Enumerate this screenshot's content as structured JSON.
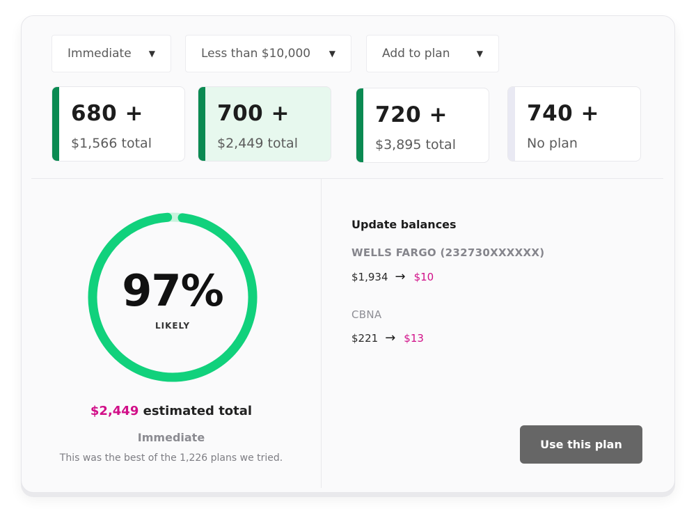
{
  "filters": [
    {
      "label": "Immediate",
      "caret": "▼"
    },
    {
      "label": "Less than $10,000",
      "caret": "▼"
    },
    {
      "label": "Add to plan",
      "caret": "▼"
    }
  ],
  "scores": [
    {
      "score": "680 +",
      "detail": "$1,566 total",
      "accent": "#0b8a52",
      "selected": false
    },
    {
      "score": "700 +",
      "detail": "$2,449 total",
      "accent": "#0b8a52",
      "selected": true
    },
    {
      "score": "720 +",
      "detail": "$3,895 total",
      "accent": "#0b8a52",
      "selected": false
    },
    {
      "score": "740 +",
      "detail": "No plan",
      "accent": "#e9e9f3",
      "selected": false
    }
  ],
  "result": {
    "percent_text": "97%",
    "percent_value": 97,
    "likelihood": "LIKELY",
    "estimated_amount": "$2,449",
    "estimated_label": " estimated total",
    "timing": "Immediate",
    "note": "This was the best of the 1,226 plans we tried."
  },
  "balances": {
    "title": "Update balances",
    "accounts": [
      {
        "name": "WELLS FARGO (232730XXXXXX)",
        "from": "$1,934",
        "to": "$10"
      },
      {
        "name": "CBNA",
        "from": "$221",
        "to": "$13"
      }
    ]
  },
  "cta": {
    "label": "Use this plan"
  },
  "colors": {
    "ring": "#11d17c",
    "ring_track": "#c8f3dd",
    "highlight": "#d10f88",
    "button": "#666666",
    "score_accent": "#0b8a52"
  }
}
